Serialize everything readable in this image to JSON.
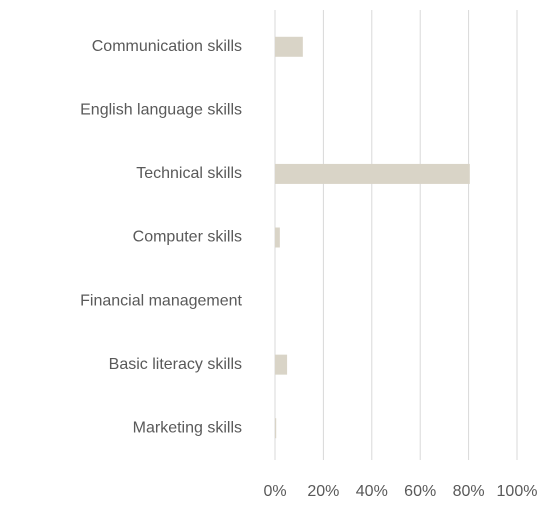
{
  "chart_data": {
    "type": "bar",
    "orientation": "horizontal",
    "categories": [
      "Communication skills",
      "English language skills",
      "Technical skills",
      "Computer skills",
      "Financial management",
      "Basic literacy skills",
      "Marketing skills"
    ],
    "values": [
      11.5,
      0,
      80.5,
      2,
      0,
      5,
      0.5
    ],
    "color": "#d9d4c7",
    "xlim": [
      0,
      100
    ],
    "xticks": [
      {
        "value": 0,
        "label": "0%"
      },
      {
        "value": 20,
        "label": "20%"
      },
      {
        "value": 40,
        "label": "40%"
      },
      {
        "value": 60,
        "label": "60%"
      },
      {
        "value": 80,
        "label": "80%"
      },
      {
        "value": 100,
        "label": "100%"
      }
    ],
    "grid": true
  }
}
